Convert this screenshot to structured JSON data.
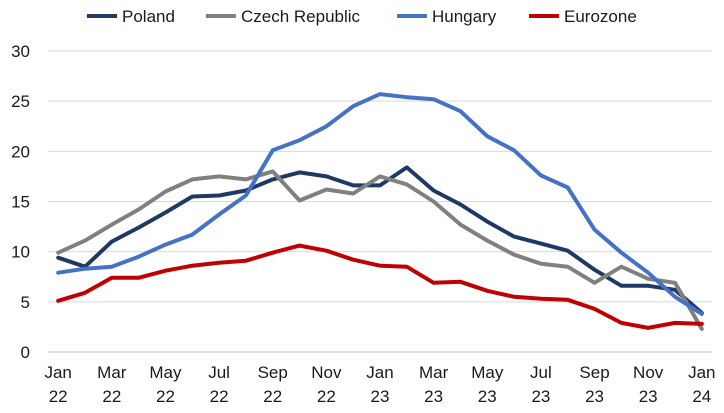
{
  "chart_data": {
    "type": "line",
    "title": "",
    "xlabel": "",
    "ylabel": "",
    "ylim": [
      0,
      30
    ],
    "yticks": [
      0,
      5,
      10,
      15,
      20,
      25,
      30
    ],
    "grid": "horizontal",
    "legend_position": "top",
    "x": [
      "Jan 22",
      "Feb 22",
      "Mar 22",
      "Apr 22",
      "May 22",
      "Jun 22",
      "Jul 22",
      "Aug 22",
      "Sep 22",
      "Oct 22",
      "Nov 22",
      "Dec 22",
      "Jan 23",
      "Feb 23",
      "Mar 23",
      "Apr 23",
      "May 23",
      "Jun 23",
      "Jul 23",
      "Aug 23",
      "Sep 23",
      "Oct 23",
      "Nov 23",
      "Dec 23",
      "Jan 24"
    ],
    "xtick_labels": [
      {
        "month": "Jan",
        "year": "22"
      },
      {
        "month": "Mar",
        "year": "22"
      },
      {
        "month": "May",
        "year": "22"
      },
      {
        "month": "Jul",
        "year": "22"
      },
      {
        "month": "Sep",
        "year": "22"
      },
      {
        "month": "Nov",
        "year": "22"
      },
      {
        "month": "Jan",
        "year": "23"
      },
      {
        "month": "Mar",
        "year": "23"
      },
      {
        "month": "May",
        "year": "23"
      },
      {
        "month": "Jul",
        "year": "23"
      },
      {
        "month": "Sep",
        "year": "23"
      },
      {
        "month": "Nov",
        "year": "23"
      },
      {
        "month": "Jan",
        "year": "24"
      }
    ],
    "series": [
      {
        "name": "Poland",
        "color": "#1f3864",
        "values": [
          9.4,
          8.5,
          11.0,
          12.4,
          13.9,
          15.5,
          15.6,
          16.1,
          17.2,
          17.9,
          17.5,
          16.6,
          16.6,
          18.4,
          16.1,
          14.7,
          13.0,
          11.5,
          10.8,
          10.1,
          8.2,
          6.6,
          6.6,
          6.2,
          3.9
        ]
      },
      {
        "name": "Czech Republic",
        "color": "#808080",
        "values": [
          9.9,
          11.1,
          12.7,
          14.2,
          16.0,
          17.2,
          17.5,
          17.2,
          18.0,
          15.1,
          16.2,
          15.8,
          17.5,
          16.7,
          15.0,
          12.7,
          11.1,
          9.7,
          8.8,
          8.5,
          6.9,
          8.5,
          7.3,
          6.9,
          2.3
        ]
      },
      {
        "name": "Hungary",
        "color": "#4472c4",
        "values": [
          7.9,
          8.3,
          8.5,
          9.5,
          10.7,
          11.7,
          13.7,
          15.6,
          20.1,
          21.1,
          22.5,
          24.5,
          25.7,
          25.4,
          25.2,
          24.0,
          21.5,
          20.1,
          17.6,
          16.4,
          12.2,
          9.9,
          7.9,
          5.5,
          3.8
        ]
      },
      {
        "name": "Eurozone",
        "color": "#c00000",
        "values": [
          5.1,
          5.9,
          7.4,
          7.4,
          8.1,
          8.6,
          8.9,
          9.1,
          9.9,
          10.6,
          10.1,
          9.2,
          8.6,
          8.5,
          6.9,
          7.0,
          6.1,
          5.5,
          5.3,
          5.2,
          4.3,
          2.9,
          2.4,
          2.9,
          2.8
        ]
      }
    ]
  }
}
